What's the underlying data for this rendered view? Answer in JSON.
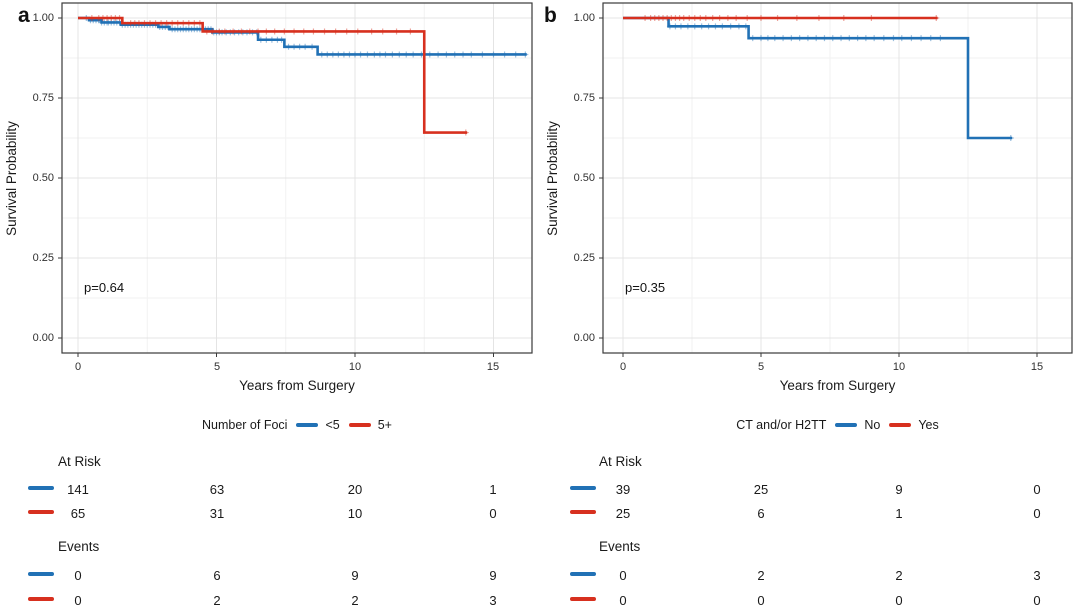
{
  "figure": {
    "colors": {
      "blue": "#2171b5",
      "red": "#d7301f",
      "grid_major": "#e4e4e4",
      "grid_minor": "#f2f2f2",
      "border": "#3a3a3a",
      "text": "#1a1a1a"
    }
  },
  "chart_data": [
    {
      "type": "line",
      "km_style": "step",
      "panel_label": "a",
      "title": "",
      "xlabel": "Years from Surgery",
      "ylabel": "Survival Probability",
      "xlim": [
        -0.6,
        16.4
      ],
      "ylim": [
        0,
        1
      ],
      "grid": true,
      "x_ticks": [
        "0",
        "5",
        "10",
        "15"
      ],
      "x_tick_values": [
        0,
        5,
        10,
        15
      ],
      "y_ticks": [
        "0.00",
        "0.25",
        "0.50",
        "0.75",
        "1.00"
      ],
      "y_tick_values": [
        0,
        0.25,
        0.5,
        0.75,
        1.0
      ],
      "p_value": "p=0.64",
      "legend_position": "bottom",
      "legend_title": "Number of Foci",
      "series": [
        {
          "name": "<5",
          "color": "#2171b5",
          "steps": [
            [
              0,
              1.0
            ],
            [
              0.4,
              0.993
            ],
            [
              0.85,
              0.986
            ],
            [
              1.55,
              0.979
            ],
            [
              2.9,
              0.972
            ],
            [
              3.3,
              0.965
            ],
            [
              4.85,
              0.955
            ],
            [
              6.5,
              0.932
            ],
            [
              7.45,
              0.91
            ],
            [
              8.65,
              0.886
            ]
          ],
          "end_x": 16.2,
          "censor_times": [
            0.3,
            0.45,
            0.55,
            0.65,
            0.75,
            0.85,
            0.95,
            1.05,
            1.1,
            1.2,
            1.3,
            1.4,
            1.5,
            1.6,
            1.7,
            1.8,
            1.9,
            2.0,
            2.1,
            2.2,
            2.3,
            2.4,
            2.5,
            2.6,
            2.7,
            2.8,
            2.95,
            3.05,
            3.15,
            3.25,
            3.4,
            3.5,
            3.6,
            3.7,
            3.8,
            3.9,
            4.0,
            4.1,
            4.2,
            4.3,
            4.4,
            4.5,
            4.6,
            4.7,
            4.8,
            4.9,
            5.0,
            5.1,
            5.2,
            5.35,
            5.5,
            5.65,
            5.8,
            5.95,
            6.1,
            6.3,
            6.45,
            6.6,
            6.8,
            7.0,
            7.2,
            7.35,
            7.6,
            7.8,
            8.0,
            8.2,
            8.45,
            8.8,
            9.0,
            9.2,
            9.4,
            9.6,
            9.8,
            10.0,
            10.2,
            10.45,
            10.7,
            10.9,
            11.1,
            11.35,
            11.6,
            11.85,
            12.1,
            12.4,
            12.7,
            13.0,
            13.3,
            13.6,
            13.9,
            14.2,
            14.6,
            15.0,
            15.4,
            15.8,
            16.15
          ]
        },
        {
          "name": "5+",
          "color": "#d7301f",
          "steps": [
            [
              0,
              1.0
            ],
            [
              1.6,
              0.984
            ],
            [
              4.5,
              0.958
            ],
            [
              12.5,
              0.642
            ]
          ],
          "end_x": 14.05,
          "censor_times": [
            0.5,
            0.75,
            0.9,
            1.05,
            1.2,
            1.35,
            1.5,
            1.9,
            2.05,
            2.2,
            2.4,
            2.6,
            2.8,
            3.0,
            3.2,
            3.4,
            3.6,
            3.8,
            4.0,
            4.2,
            4.4,
            4.65,
            4.85,
            5.1,
            5.3,
            5.6,
            5.9,
            6.2,
            6.5,
            6.8,
            7.1,
            7.45,
            7.8,
            8.15,
            8.5,
            8.9,
            9.3,
            9.7,
            10.1,
            10.6,
            11.0,
            11.5,
            12.0,
            14.0
          ]
        }
      ],
      "risk_table": {
        "at_risk_label": "At Risk",
        "events_label": "Events",
        "times": [
          0,
          5,
          10,
          15
        ],
        "at_risk": [
          [
            141,
            63,
            20,
            1
          ],
          [
            65,
            31,
            10,
            0
          ]
        ],
        "events": [
          [
            0,
            6,
            9,
            9
          ],
          [
            0,
            2,
            2,
            3
          ]
        ]
      }
    },
    {
      "type": "line",
      "km_style": "step",
      "panel_label": "b",
      "title": "",
      "xlabel": "Years from Surgery",
      "ylabel": "Survival Probability",
      "xlim": [
        -0.6,
        16.4
      ],
      "ylim": [
        0,
        1
      ],
      "grid": true,
      "x_ticks": [
        "0",
        "5",
        "10",
        "15"
      ],
      "x_tick_values": [
        0,
        5,
        10,
        15
      ],
      "y_ticks": [
        "0.00",
        "0.25",
        "0.50",
        "0.75",
        "1.00"
      ],
      "y_tick_values": [
        0,
        0.25,
        0.5,
        0.75,
        1.0
      ],
      "p_value": "p=0.35",
      "legend_position": "bottom",
      "legend_title": "CT and/or H2TT",
      "series": [
        {
          "name": "No",
          "color": "#2171b5",
          "steps": [
            [
              0,
              1.0
            ],
            [
              1.65,
              0.974
            ],
            [
              4.55,
              0.937
            ],
            [
              12.5,
              0.625
            ]
          ],
          "end_x": 14.1,
          "censor_times": [
            1.7,
            1.9,
            2.1,
            2.35,
            2.6,
            2.85,
            3.1,
            3.35,
            3.6,
            3.9,
            4.2,
            4.45,
            4.7,
            5.0,
            5.25,
            5.5,
            5.8,
            6.1,
            6.4,
            6.7,
            7.0,
            7.3,
            7.6,
            7.9,
            8.2,
            8.5,
            8.8,
            9.1,
            9.45,
            9.8,
            10.1,
            10.45,
            10.8,
            11.15,
            11.5,
            14.05
          ]
        },
        {
          "name": "Yes",
          "color": "#d7301f",
          "steps": [
            [
              0,
              1.0
            ]
          ],
          "end_x": 11.4,
          "censor_times": [
            0.8,
            1.0,
            1.15,
            1.3,
            1.45,
            1.6,
            1.75,
            1.9,
            2.05,
            2.2,
            2.4,
            2.6,
            2.8,
            3.0,
            3.25,
            3.5,
            3.8,
            4.1,
            4.5,
            5.0,
            5.6,
            6.3,
            7.1,
            8.0,
            9.0,
            11.35
          ]
        }
      ],
      "risk_table": {
        "at_risk_label": "At Risk",
        "events_label": "Events",
        "times": [
          0,
          5,
          10,
          15
        ],
        "at_risk": [
          [
            39,
            25,
            9,
            0
          ],
          [
            25,
            6,
            1,
            0
          ]
        ],
        "events": [
          [
            0,
            2,
            2,
            3
          ],
          [
            0,
            0,
            0,
            0
          ]
        ]
      }
    }
  ]
}
